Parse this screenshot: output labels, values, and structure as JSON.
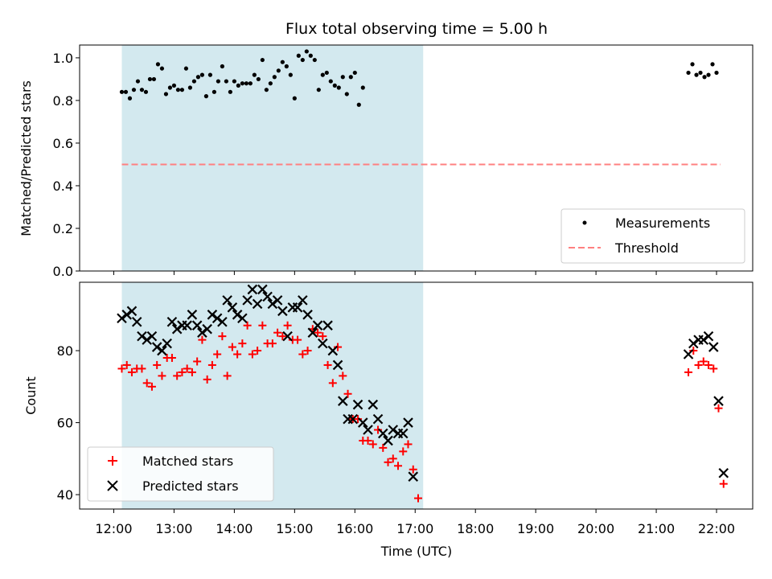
{
  "title": "Flux total observing time = 5.00 h",
  "colors": {
    "shade": "#d3e9ef",
    "threshold": "#ff8080",
    "matched": "#ff0000",
    "predicted": "#000000",
    "measurement": "#000000"
  },
  "chart_data": [
    {
      "type": "scatter",
      "ylabel": "Matched/Predicted stars",
      "ylim": [
        0,
        1.06
      ],
      "yticks": [
        "0.0",
        "0.2",
        "0.4",
        "0.6",
        "0.8",
        "1.0"
      ],
      "ytick_values": [
        0,
        0.2,
        0.4,
        0.6,
        0.8,
        1.0
      ],
      "shaded_interval": [
        "12:08",
        "17:08"
      ],
      "legend": {
        "placement": "lower-right",
        "entries": [
          "Measurements",
          "Threshold"
        ]
      },
      "threshold": {
        "name": "Threshold",
        "y": 0.5,
        "x_range": [
          "12:08",
          "22:04"
        ],
        "style": "dashed"
      },
      "series": [
        {
          "name": "Measurements",
          "marker": "dot",
          "points": [
            [
              "12:08",
              0.84
            ],
            [
              "12:12",
              0.84
            ],
            [
              "12:16",
              0.81
            ],
            [
              "12:20",
              0.85
            ],
            [
              "12:24",
              0.89
            ],
            [
              "12:28",
              0.85
            ],
            [
              "12:32",
              0.84
            ],
            [
              "12:36",
              0.9
            ],
            [
              "12:40",
              0.9
            ],
            [
              "12:44",
              0.97
            ],
            [
              "12:48",
              0.95
            ],
            [
              "12:52",
              0.83
            ],
            [
              "12:56",
              0.86
            ],
            [
              "13:00",
              0.87
            ],
            [
              "13:04",
              0.85
            ],
            [
              "13:08",
              0.85
            ],
            [
              "13:12",
              0.95
            ],
            [
              "13:16",
              0.86
            ],
            [
              "13:20",
              0.89
            ],
            [
              "13:24",
              0.91
            ],
            [
              "13:28",
              0.92
            ],
            [
              "13:32",
              0.82
            ],
            [
              "13:36",
              0.92
            ],
            [
              "13:40",
              0.84
            ],
            [
              "13:44",
              0.89
            ],
            [
              "13:48",
              0.96
            ],
            [
              "13:52",
              0.89
            ],
            [
              "13:56",
              0.84
            ],
            [
              "14:00",
              0.89
            ],
            [
              "14:04",
              0.87
            ],
            [
              "14:08",
              0.88
            ],
            [
              "14:12",
              0.88
            ],
            [
              "14:16",
              0.88
            ],
            [
              "14:20",
              0.92
            ],
            [
              "14:24",
              0.9
            ],
            [
              "14:28",
              0.99
            ],
            [
              "14:32",
              0.85
            ],
            [
              "14:36",
              0.88
            ],
            [
              "14:40",
              0.91
            ],
            [
              "14:44",
              0.94
            ],
            [
              "14:48",
              0.98
            ],
            [
              "14:52",
              0.96
            ],
            [
              "14:56",
              0.92
            ],
            [
              "15:00",
              0.81
            ],
            [
              "15:04",
              1.01
            ],
            [
              "15:08",
              0.99
            ],
            [
              "15:12",
              1.03
            ],
            [
              "15:16",
              1.01
            ],
            [
              "15:20",
              0.99
            ],
            [
              "15:24",
              0.85
            ],
            [
              "15:28",
              0.92
            ],
            [
              "15:32",
              0.93
            ],
            [
              "15:36",
              0.89
            ],
            [
              "15:40",
              0.87
            ],
            [
              "15:44",
              0.86
            ],
            [
              "15:48",
              0.91
            ],
            [
              "15:52",
              0.83
            ],
            [
              "15:56",
              0.91
            ],
            [
              "16:00",
              0.93
            ],
            [
              "16:04",
              0.78
            ],
            [
              "16:08",
              0.86
            ],
            [
              "21:32",
              0.93
            ],
            [
              "21:36",
              0.97
            ],
            [
              "21:40",
              0.92
            ],
            [
              "21:44",
              0.93
            ],
            [
              "21:48",
              0.91
            ],
            [
              "21:52",
              0.92
            ],
            [
              "21:56",
              0.97
            ],
            [
              "22:00",
              0.93
            ]
          ]
        }
      ]
    },
    {
      "type": "scatter",
      "ylabel": "Count",
      "xlabel": "Time (UTC)",
      "ylim": [
        36,
        99
      ],
      "yticks": [
        "40",
        "60",
        "80"
      ],
      "ytick_values": [
        40,
        60,
        80
      ],
      "xlim": [
        "11:26",
        "22:36"
      ],
      "xticks": [
        "12:00",
        "13:00",
        "14:00",
        "15:00",
        "16:00",
        "17:00",
        "18:00",
        "19:00",
        "20:00",
        "21:00",
        "22:00"
      ],
      "shaded_interval": [
        "12:08",
        "17:08"
      ],
      "legend": {
        "placement": "lower-left",
        "entries": [
          "Matched stars",
          "Predicted stars"
        ]
      },
      "series": [
        {
          "name": "Matched stars",
          "marker": "plus",
          "points": [
            [
              "12:08",
              75
            ],
            [
              "12:13",
              76
            ],
            [
              "12:18",
              74
            ],
            [
              "12:23",
              75
            ],
            [
              "12:28",
              75
            ],
            [
              "12:33",
              71
            ],
            [
              "12:38",
              70
            ],
            [
              "12:43",
              76
            ],
            [
              "12:48",
              73
            ],
            [
              "12:53",
              78
            ],
            [
              "12:58",
              78
            ],
            [
              "13:03",
              73
            ],
            [
              "13:08",
              74
            ],
            [
              "13:13",
              75
            ],
            [
              "13:18",
              74
            ],
            [
              "13:23",
              77
            ],
            [
              "13:28",
              83
            ],
            [
              "13:33",
              72
            ],
            [
              "13:38",
              76
            ],
            [
              "13:43",
              79
            ],
            [
              "13:48",
              84
            ],
            [
              "13:53",
              73
            ],
            [
              "13:58",
              81
            ],
            [
              "14:03",
              79
            ],
            [
              "14:08",
              82
            ],
            [
              "14:13",
              87
            ],
            [
              "14:18",
              79
            ],
            [
              "14:23",
              80
            ],
            [
              "14:28",
              87
            ],
            [
              "14:33",
              82
            ],
            [
              "14:38",
              82
            ],
            [
              "14:43",
              85
            ],
            [
              "14:48",
              84
            ],
            [
              "14:53",
              87
            ],
            [
              "14:58",
              83
            ],
            [
              "15:03",
              83
            ],
            [
              "15:08",
              79
            ],
            [
              "15:13",
              80
            ],
            [
              "15:18",
              86
            ],
            [
              "15:23",
              85
            ],
            [
              "15:28",
              84
            ],
            [
              "15:33",
              76
            ],
            [
              "15:38",
              71
            ],
            [
              "15:43",
              81
            ],
            [
              "15:48",
              73
            ],
            [
              "15:53",
              68
            ],
            [
              "15:58",
              61
            ],
            [
              "16:03",
              61
            ],
            [
              "16:08",
              55
            ],
            [
              "16:13",
              55
            ],
            [
              "16:18",
              54
            ],
            [
              "16:23",
              58
            ],
            [
              "16:28",
              53
            ],
            [
              "16:33",
              49
            ],
            [
              "16:38",
              50
            ],
            [
              "16:43",
              48
            ],
            [
              "16:48",
              52
            ],
            [
              "16:53",
              54
            ],
            [
              "16:58",
              47
            ],
            [
              "17:03",
              39
            ],
            [
              "21:32",
              74
            ],
            [
              "21:37",
              80
            ],
            [
              "21:42",
              76
            ],
            [
              "21:47",
              77
            ],
            [
              "21:52",
              76
            ],
            [
              "21:57",
              75
            ],
            [
              "22:02",
              64
            ],
            [
              "22:07",
              43
            ]
          ]
        },
        {
          "name": "Predicted stars",
          "marker": "x",
          "points": [
            [
              "12:08",
              89
            ],
            [
              "12:13",
              90
            ],
            [
              "12:18",
              91
            ],
            [
              "12:23",
              88
            ],
            [
              "12:28",
              84
            ],
            [
              "12:33",
              83
            ],
            [
              "12:38",
              84
            ],
            [
              "12:43",
              81
            ],
            [
              "12:48",
              80
            ],
            [
              "12:53",
              82
            ],
            [
              "12:58",
              88
            ],
            [
              "13:03",
              86
            ],
            [
              "13:08",
              87
            ],
            [
              "13:13",
              87
            ],
            [
              "13:18",
              90
            ],
            [
              "13:23",
              87
            ],
            [
              "13:28",
              85
            ],
            [
              "13:33",
              86
            ],
            [
              "13:38",
              90
            ],
            [
              "13:43",
              89
            ],
            [
              "13:48",
              88
            ],
            [
              "13:53",
              94
            ],
            [
              "13:58",
              92
            ],
            [
              "14:03",
              90
            ],
            [
              "14:08",
              89
            ],
            [
              "14:13",
              94
            ],
            [
              "14:18",
              97
            ],
            [
              "14:23",
              93
            ],
            [
              "14:28",
              97
            ],
            [
              "14:33",
              95
            ],
            [
              "14:38",
              93
            ],
            [
              "14:43",
              94
            ],
            [
              "14:48",
              91
            ],
            [
              "14:53",
              84
            ],
            [
              "14:58",
              92
            ],
            [
              "15:03",
              92
            ],
            [
              "15:08",
              94
            ],
            [
              "15:13",
              90
            ],
            [
              "15:18",
              85
            ],
            [
              "15:23",
              87
            ],
            [
              "15:28",
              82
            ],
            [
              "15:33",
              87
            ],
            [
              "15:38",
              80
            ],
            [
              "15:43",
              76
            ],
            [
              "15:48",
              66
            ],
            [
              "15:53",
              61
            ],
            [
              "15:58",
              61
            ],
            [
              "16:03",
              65
            ],
            [
              "16:08",
              60
            ],
            [
              "16:13",
              58
            ],
            [
              "16:18",
              65
            ],
            [
              "16:23",
              61
            ],
            [
              "16:28",
              57
            ],
            [
              "16:33",
              55
            ],
            [
              "16:38",
              58
            ],
            [
              "16:43",
              57
            ],
            [
              "16:48",
              57
            ],
            [
              "16:53",
              60
            ],
            [
              "16:58",
              45
            ],
            [
              "21:32",
              79
            ],
            [
              "21:37",
              82
            ],
            [
              "21:42",
              83
            ],
            [
              "21:47",
              83
            ],
            [
              "21:52",
              84
            ],
            [
              "21:57",
              81
            ],
            [
              "22:02",
              66
            ],
            [
              "22:07",
              46
            ]
          ]
        }
      ]
    }
  ]
}
